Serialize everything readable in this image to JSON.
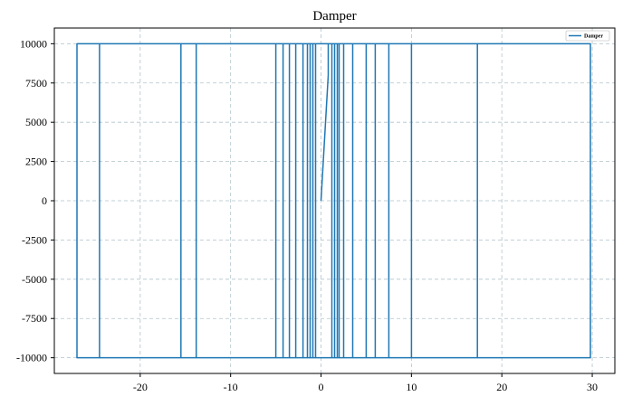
{
  "chart_data": {
    "type": "line",
    "title": "Damper",
    "xlabel": "",
    "ylabel": "",
    "xlim": [
      -29.5,
      32.5
    ],
    "ylim": [
      -11000,
      11000
    ],
    "x_ticks": [
      -20,
      -10,
      0,
      10,
      20,
      30
    ],
    "y_ticks": [
      -10000,
      -7500,
      -5000,
      -2500,
      0,
      2500,
      5000,
      7500,
      10000
    ],
    "grid": true,
    "legend_position": "top-right",
    "colors": {
      "series": "#1f77b4",
      "grid": "#b0c4cc",
      "axis": "#000000"
    },
    "series": [
      {
        "name": "Damper",
        "color": "#1f77b4",
        "x": [
          0,
          0.8,
          0.8,
          -0.6,
          -0.6,
          1.2,
          1.2,
          -0.9,
          -0.9,
          1.5,
          1.5,
          -1.2,
          -1.2,
          1.8,
          1.8,
          -1.5,
          -1.5,
          2.0,
          2.0,
          -2.0,
          -2.0,
          2.5,
          2.5,
          -2.8,
          -2.8,
          3.5,
          3.5,
          -3.5,
          -3.5,
          5.0,
          5.0,
          -4.2,
          -4.2,
          6.0,
          6.0,
          -5.0,
          -5.0,
          7.5,
          7.5,
          -13.8,
          -13.8,
          10.0,
          10.0,
          -15.5,
          -15.5,
          17.3,
          17.3,
          -24.5,
          -24.5,
          29.8,
          29.8,
          -27.0,
          -27.0,
          0
        ],
        "y": [
          0,
          8000,
          10000,
          10000,
          -10000,
          -10000,
          10000,
          10000,
          -10000,
          -10000,
          10000,
          10000,
          -10000,
          -10000,
          10000,
          10000,
          -10000,
          -10000,
          10000,
          10000,
          -10000,
          -10000,
          10000,
          10000,
          -10000,
          -10000,
          10000,
          10000,
          -10000,
          -10000,
          10000,
          10000,
          -10000,
          -10000,
          10000,
          10000,
          -10000,
          -10000,
          10000,
          10000,
          -10000,
          -10000,
          10000,
          10000,
          -10000,
          -10000,
          10000,
          10000,
          -10000,
          -10000,
          10000,
          10000,
          -10000,
          -10000
        ]
      }
    ]
  }
}
